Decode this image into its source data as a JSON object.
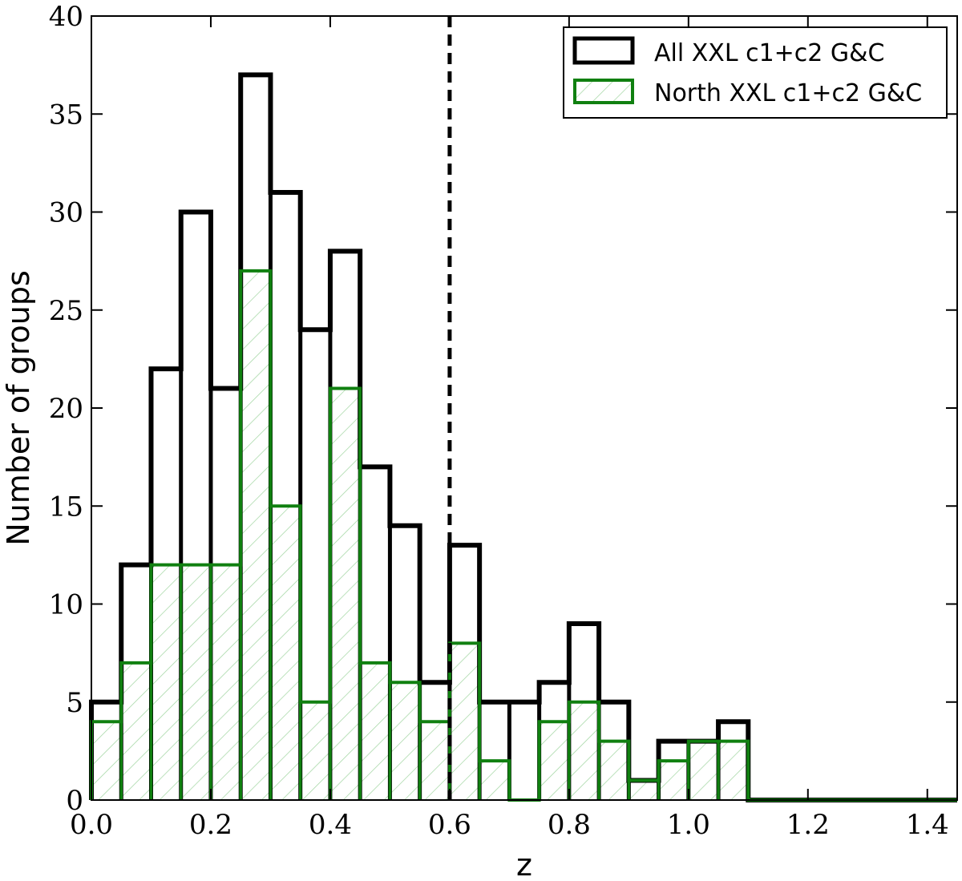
{
  "chart_data": {
    "type": "bar",
    "subtype": "step-histogram",
    "title": "",
    "xlabel": "z",
    "ylabel": "Number of groups",
    "xlim": [
      0.0,
      1.45
    ],
    "ylim": [
      0,
      40
    ],
    "x_ticks": [
      0.0,
      0.2,
      0.4,
      0.6,
      0.8,
      1.0,
      1.2,
      1.4
    ],
    "x_tick_labels": [
      "0.0",
      "0.2",
      "0.4",
      "0.6",
      "0.8",
      "1.0",
      "1.2",
      "1.4"
    ],
    "y_ticks": [
      0,
      5,
      10,
      15,
      20,
      25,
      30,
      35,
      40
    ],
    "y_tick_labels": [
      "0",
      "5",
      "10",
      "15",
      "20",
      "25",
      "30",
      "35",
      "40"
    ],
    "grid": false,
    "legend_position": "top-right",
    "bin_edges": [
      0.0,
      0.05,
      0.1,
      0.15,
      0.2,
      0.25,
      0.3,
      0.35,
      0.4,
      0.45,
      0.5,
      0.55,
      0.6,
      0.65,
      0.7,
      0.75,
      0.8,
      0.85,
      0.9,
      0.95,
      1.0,
      1.05,
      1.1,
      1.15,
      1.2,
      1.25,
      1.3,
      1.35,
      1.4,
      1.45
    ],
    "series": [
      {
        "name": "All XXL c1+c2 G&C",
        "color": "#000000",
        "values": [
          5,
          12,
          22,
          30,
          21,
          37,
          31,
          24,
          28,
          17,
          14,
          6,
          13,
          5,
          5,
          6,
          9,
          5,
          1,
          3,
          3,
          4,
          0,
          0,
          0,
          0,
          0,
          0,
          0
        ]
      },
      {
        "name": "North XXL c1+c2 G&C",
        "color": "#108010",
        "hatch": true,
        "values": [
          4,
          7,
          12,
          12,
          12,
          27,
          15,
          5,
          21,
          7,
          6,
          4,
          8,
          2,
          0,
          4,
          5,
          3,
          1,
          2,
          3,
          3,
          0,
          0,
          0,
          0,
          0,
          0,
          0
        ]
      }
    ],
    "reference_line": {
      "x": 0.6,
      "style": "dashed",
      "color": "#000000"
    }
  }
}
